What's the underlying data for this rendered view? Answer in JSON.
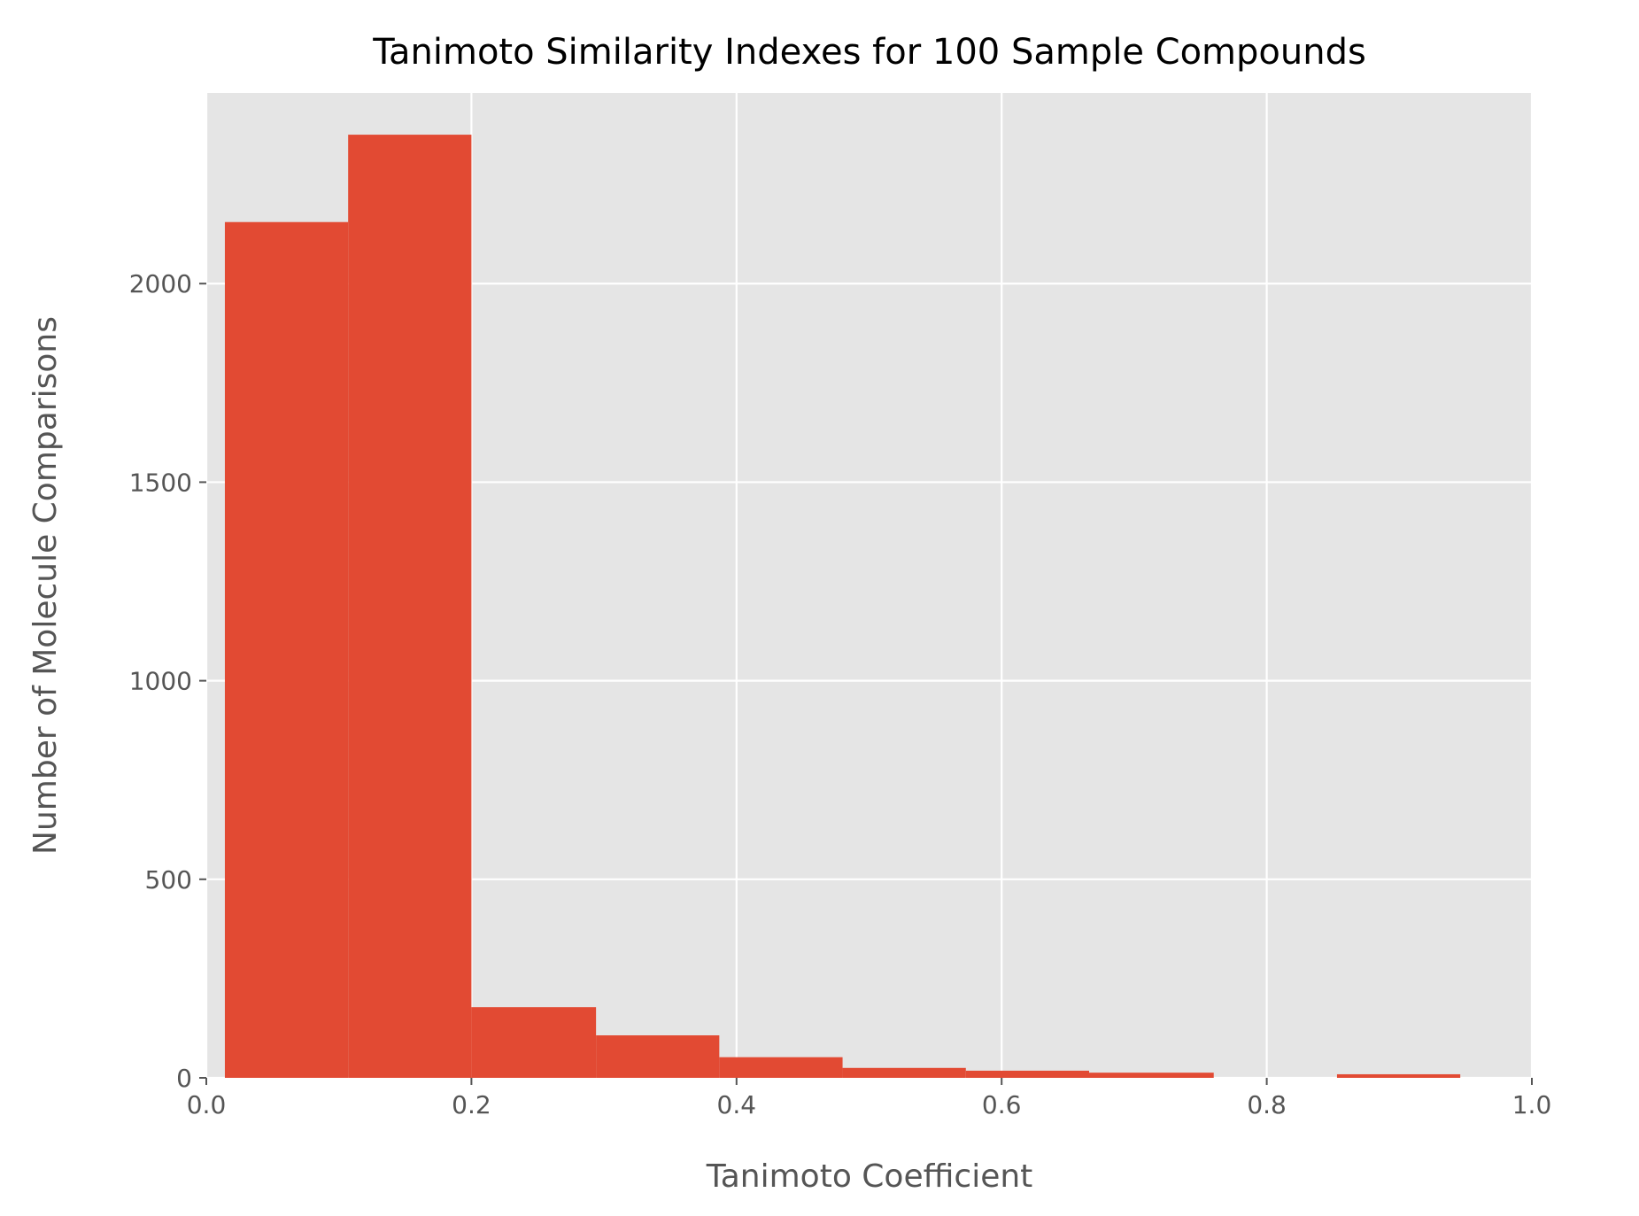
{
  "chart_data": {
    "type": "bar",
    "title": "Tanimoto Similarity Indexes for 100 Sample Compounds",
    "xlabel": "Tanimoto Coefficient",
    "ylabel": "Number of Molecule Comparisons",
    "xlim": [
      0.0,
      1.0
    ],
    "ylim": [
      0,
      2480
    ],
    "x_ticks": [
      "0.0",
      "0.2",
      "0.4",
      "0.6",
      "0.8",
      "1.0"
    ],
    "y_ticks": [
      "0",
      "500",
      "1000",
      "1500",
      "2000"
    ],
    "bins": [
      {
        "start": 0.014,
        "end": 0.107,
        "count": 2155
      },
      {
        "start": 0.107,
        "end": 0.2,
        "count": 2375
      },
      {
        "start": 0.2,
        "end": 0.294,
        "count": 178
      },
      {
        "start": 0.294,
        "end": 0.387,
        "count": 107
      },
      {
        "start": 0.387,
        "end": 0.48,
        "count": 52
      },
      {
        "start": 0.48,
        "end": 0.573,
        "count": 25
      },
      {
        "start": 0.573,
        "end": 0.666,
        "count": 18
      },
      {
        "start": 0.666,
        "end": 0.76,
        "count": 13
      },
      {
        "start": 0.76,
        "end": 0.853,
        "count": 0
      },
      {
        "start": 0.853,
        "end": 0.946,
        "count": 9
      }
    ],
    "grid": true,
    "colors": {
      "bar": "#E24A33",
      "plot_background": "#E5E5E5",
      "grid": "#FFFFFF",
      "text": "#555555",
      "title": "#000000"
    }
  }
}
